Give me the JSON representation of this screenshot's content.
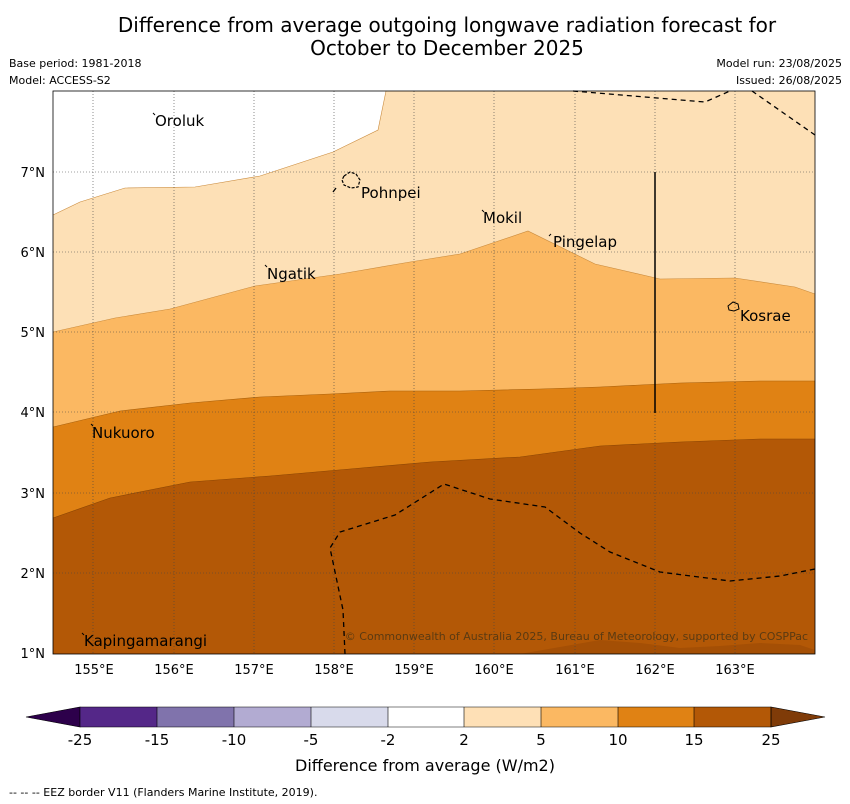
{
  "title_line1": "Difference from average outgoing longwave radiation forecast for",
  "title_line2": "October to December 2025",
  "base_period": "Base period: 1981-2018",
  "model": "Model: ACCESS-S2",
  "model_run": "Model run: 23/08/2025",
  "issued": "Issued: 26/08/2025",
  "map": {
    "lat_ticks": [
      "1°N",
      "2°N",
      "3°N",
      "4°N",
      "5°N",
      "6°N",
      "7°N"
    ],
    "lon_ticks": [
      "155°E",
      "156°E",
      "157°E",
      "158°E",
      "159°E",
      "160°E",
      "161°E",
      "162°E",
      "163°E"
    ],
    "places": [
      "Oroluk",
      "Pohnpei",
      "Mokil",
      "Pingelap",
      "Ngatik",
      "Kosrae",
      "Nukuoro",
      "Kapingamarangi"
    ],
    "copyright": "© Commonwealth of Australia 2025, Bureau of Meteorology, supported by COSPPac"
  },
  "colorbar": {
    "labels": [
      "-25",
      "-15",
      "-10",
      "-5",
      "-2",
      "2",
      "5",
      "10",
      "15",
      "25"
    ],
    "colors": [
      "#542788",
      "#8073ac",
      "#b2abd2",
      "#d8daeb",
      "#ffffff",
      "#fee0b6",
      "#fbb862",
      "#e08214",
      "#b35806",
      "#7f3b08",
      "#2d004b"
    ],
    "xlabel": "Difference from average (W/m2)"
  },
  "footnote": "--  --  -- EEZ border V11 (Flanders Marine Institute, 2019)."
}
